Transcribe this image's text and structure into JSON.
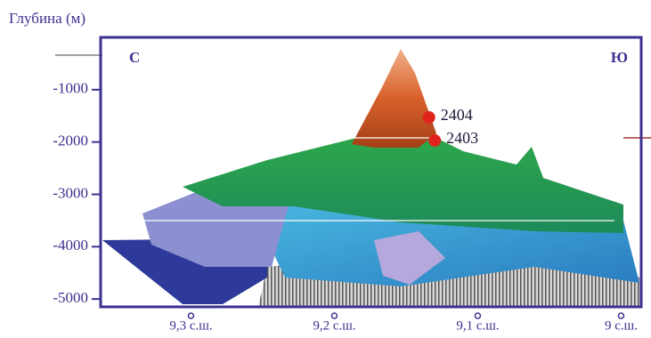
{
  "chart_data": {
    "type": "terrain",
    "y_axis_title": "Глубина (м)",
    "corner_labels": [
      "С",
      "Ю"
    ],
    "xlim": [
      9.363,
      8.986
    ],
    "xticks": [
      {
        "value": 9.3,
        "label": "9,3 с.ш."
      },
      {
        "value": 9.2,
        "label": "9,2 с.ш."
      },
      {
        "value": 9.1,
        "label": "9,1 с.ш."
      },
      {
        "value": 9,
        "label": "9 с.ш."
      }
    ],
    "ylim": [
      -5150,
      0
    ],
    "yticks": [
      -1000,
      -2000,
      -3000,
      -4000,
      -5000
    ],
    "series": [
      {
        "name": "2404",
        "color": "#e0231c",
        "x": [
          9.134
        ],
        "values": [
          -1530
        ]
      },
      {
        "name": "2403",
        "color": "#e0231c",
        "x": [
          9.13
        ],
        "values": [
          -1970
        ]
      }
    ]
  }
}
